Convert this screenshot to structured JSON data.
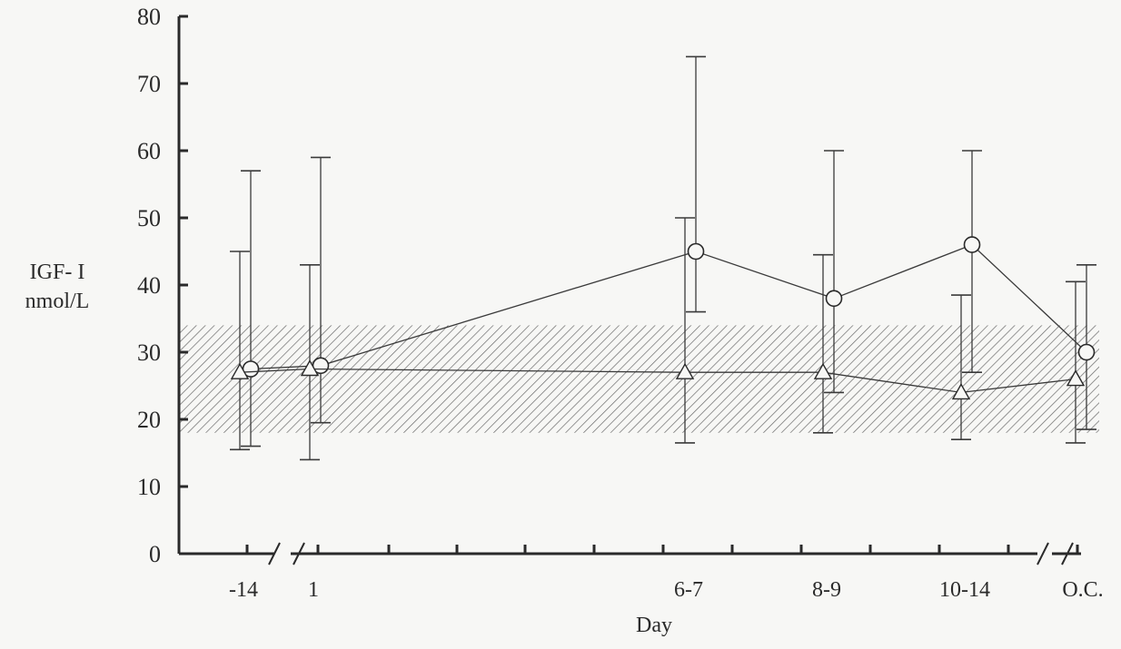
{
  "chart_data": {
    "type": "line",
    "xlabel": "Day",
    "ylabel_lines": [
      "IGF- I",
      "nmol/L"
    ],
    "categories": [
      "-14",
      "1",
      "6-7",
      "8-9",
      "10-14",
      "O.C."
    ],
    "ylim": [
      0,
      80
    ],
    "yticks": [
      0,
      10,
      20,
      30,
      40,
      50,
      60,
      70,
      80
    ],
    "axis_breaks_after": [
      "-14",
      "10-14"
    ],
    "reference_band": {
      "from": 18,
      "to": 34,
      "fill": "hatched"
    },
    "series": [
      {
        "marker": "circle",
        "values": [
          27.5,
          28,
          45,
          38,
          46,
          30
        ],
        "error_low": [
          16,
          19.5,
          36,
          24,
          27,
          18.5
        ],
        "error_high": [
          57,
          59,
          74,
          60,
          60,
          43
        ]
      },
      {
        "marker": "triangle",
        "values": [
          27,
          27.5,
          27,
          27,
          24,
          26
        ],
        "error_low": [
          15.5,
          14,
          16.5,
          18,
          17,
          16.5
        ],
        "error_high": [
          45,
          43,
          50,
          44.5,
          38.5,
          40.5
        ]
      }
    ],
    "grid": false,
    "legend": "none"
  }
}
